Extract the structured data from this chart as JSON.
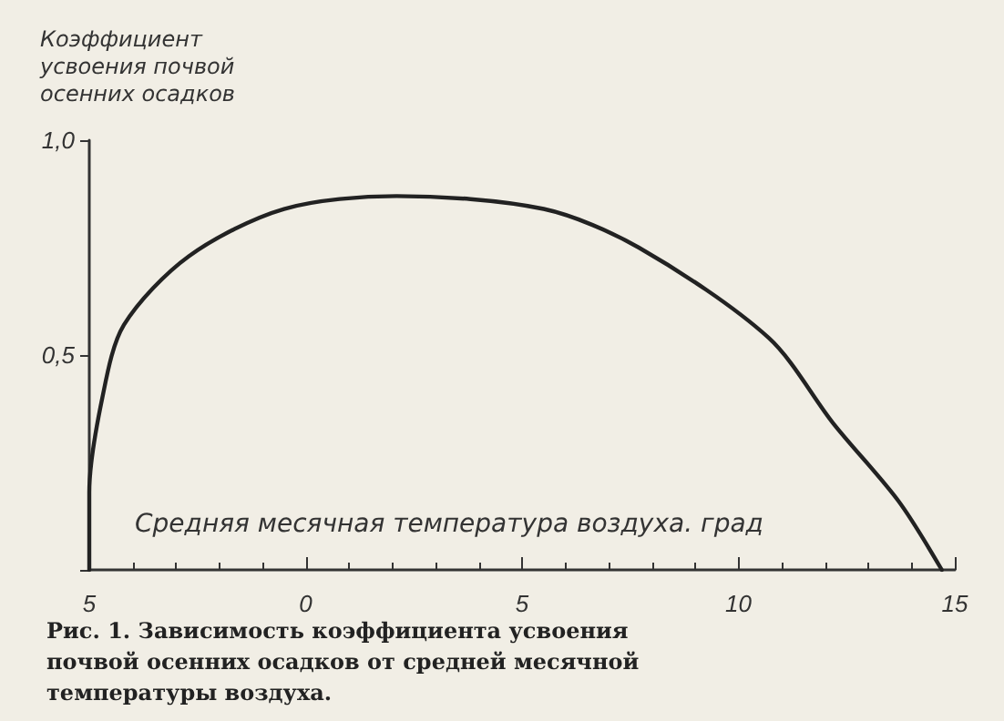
{
  "chart_data": {
    "type": "line",
    "ylabel": "Коэффициент усвоения почвой осенних осадков",
    "xlabel": "Средняя месячная температура воздуха. град",
    "annotations": [
      "Рис. 1. Зависимость коэффициента усвоения почвой осенних осадков от средней месячной температуры воздуха."
    ],
    "x": [
      -5,
      -5,
      -4.7,
      -4.2,
      -2.7,
      -0.5,
      2.1,
      5.5,
      7.7,
      10.7,
      12.2,
      13.7,
      14.7
    ],
    "series": [
      {
        "color": "#222222",
        "values": [
          0,
          0.18,
          0.4,
          0.57,
          0.73,
          0.84,
          0.87,
          0.84,
          0.75,
          0.54,
          0.34,
          0.16,
          0
        ]
      }
    ],
    "xlim": [
      -5,
      15
    ],
    "xticks": [
      {
        "value": -5,
        "label": "5"
      },
      0,
      5,
      10,
      15
    ],
    "ylim": [
      0,
      1
    ],
    "yticks": [
      {
        "value": 0,
        "label": null
      },
      {
        "value": 0.5,
        "label": "0,5"
      },
      {
        "value": 1,
        "label": "1,0"
      }
    ],
    "grid": false,
    "marker": "none",
    "line_style": "solid"
  }
}
